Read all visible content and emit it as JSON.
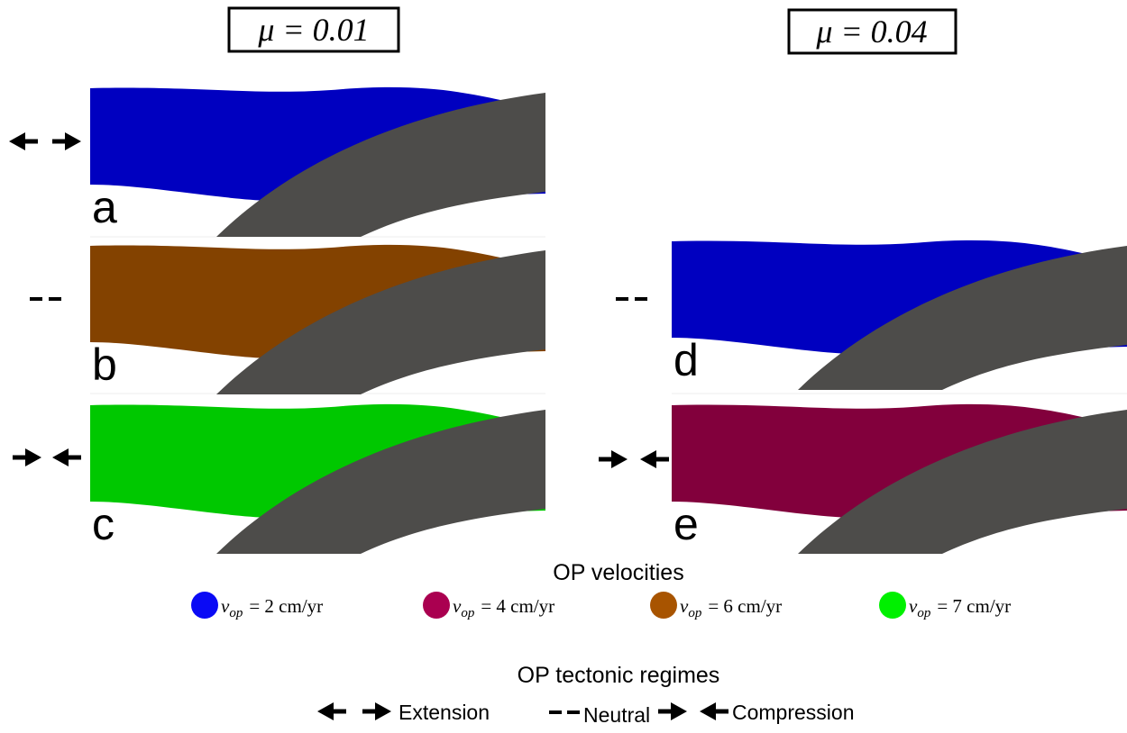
{
  "columns": [
    {
      "title": "μ = 0.01"
    },
    {
      "title": "μ = 0.04"
    }
  ],
  "panels": [
    {
      "label": "a",
      "color": "#0000c0"
    },
    {
      "label": "b",
      "color": "#834200"
    },
    {
      "label": "c",
      "color": "#00c800"
    },
    {
      "label": "d",
      "color": "#0000c0"
    },
    {
      "label": "e",
      "color": "#82003c"
    }
  ],
  "legend": {
    "title": "OP velocities",
    "items": [
      {
        "symbol": "v",
        "subscript": "op",
        "text": "= 2 cm/yr",
        "color": "#0a0af5"
      },
      {
        "symbol": "v",
        "subscript": "op",
        "text": "= 4 cm/yr",
        "color": "#aa0050"
      },
      {
        "symbol": "v",
        "subscript": "op",
        "text": "= 6 cm/yr",
        "color": "#a85400"
      },
      {
        "symbol": "v",
        "subscript": "op",
        "text": "= 7 cm/yr",
        "color": "#00f000"
      }
    ]
  },
  "regimes": {
    "title": "OP tectonic regimes",
    "items": [
      "Extension",
      "Neutral",
      "Compression"
    ]
  }
}
